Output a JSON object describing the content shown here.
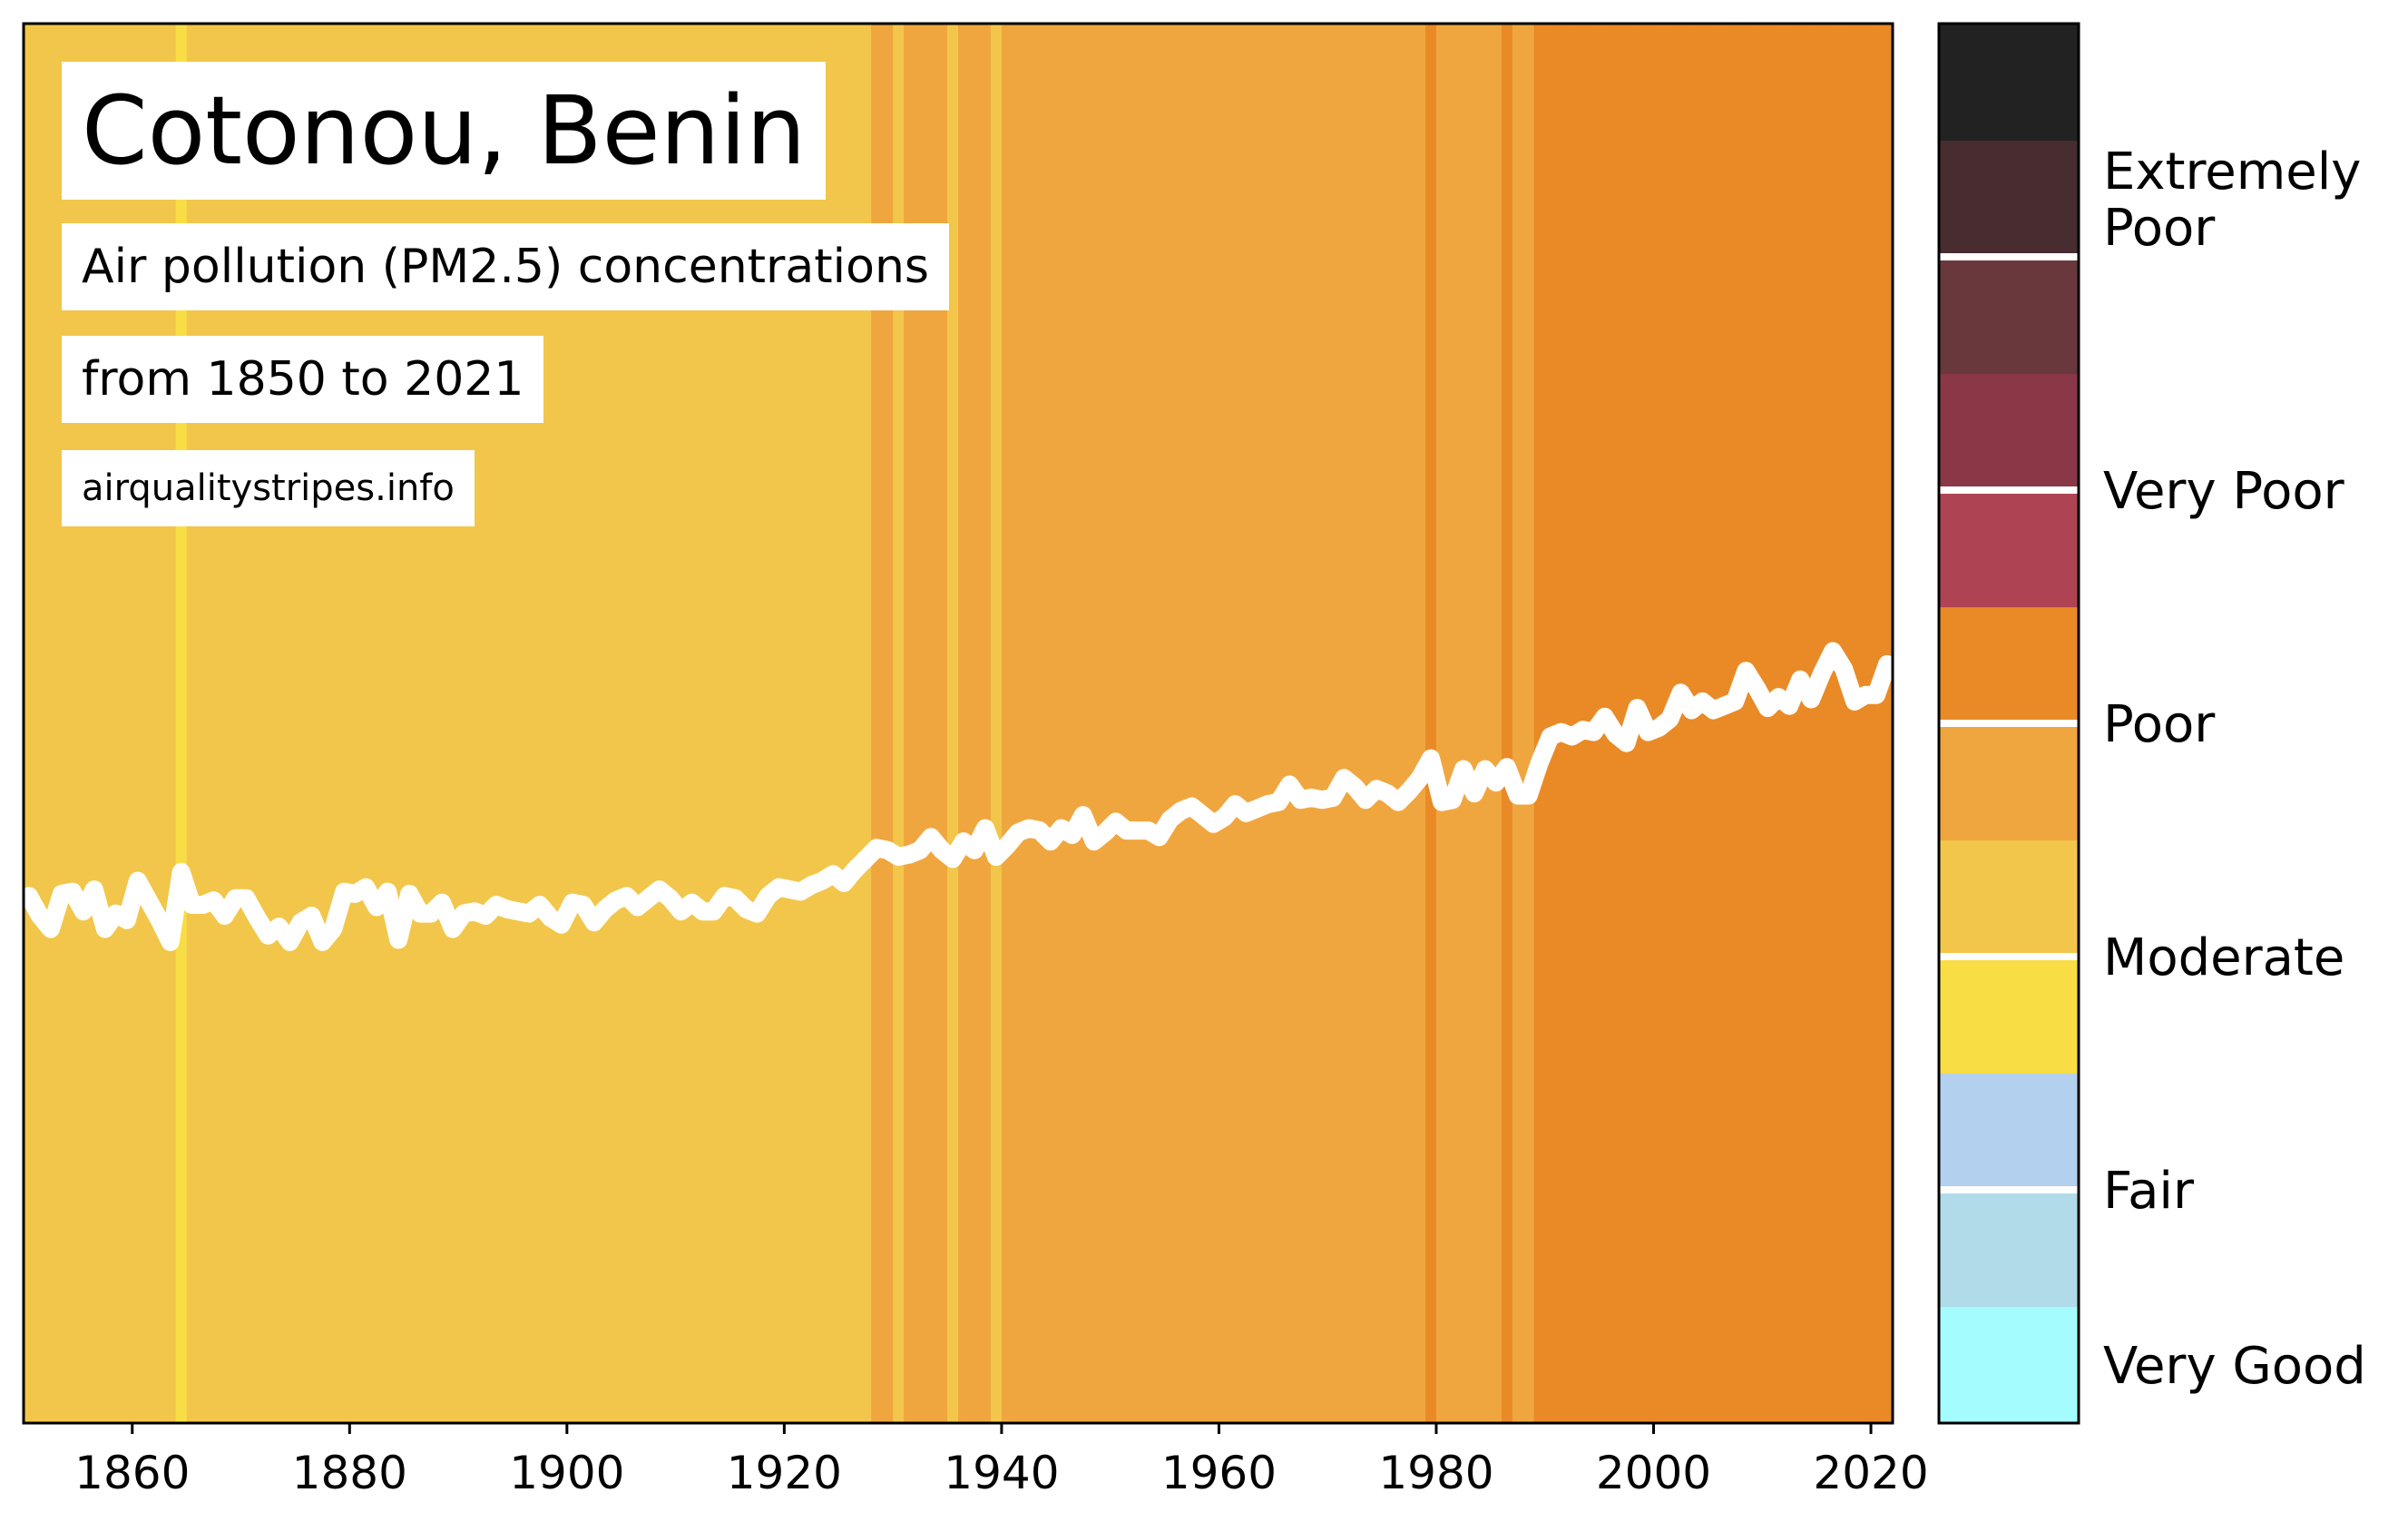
{
  "header": {
    "title": "Cotonou, Benin",
    "subtitle": "Air pollution (PM2.5) concentrations",
    "range": "from 1850 to 2021",
    "source": "airqualitystripes.info"
  },
  "chart_data": {
    "type": "heatmap",
    "description_type": "warming-stripes style yearly stripes with overlaid line",
    "xlim": [
      1850,
      2022
    ],
    "x_ticks": [
      1860,
      1880,
      1900,
      1920,
      1940,
      1960,
      1980,
      2000,
      2020
    ],
    "line_color": "#ffffff",
    "years_start": 1850,
    "values": [
      24.1,
      23.2,
      22.6,
      24.2,
      24.3,
      23.4,
      24.4,
      22.6,
      23.3,
      23.0,
      24.8,
      23.9,
      23.0,
      22.0,
      25.2,
      23.7,
      23.7,
      23.9,
      23.2,
      24.0,
      24.0,
      23.1,
      22.3,
      22.7,
      22.0,
      22.9,
      23.2,
      22.0,
      22.6,
      24.3,
      24.2,
      24.5,
      23.6,
      24.3,
      22.1,
      24.2,
      23.3,
      23.3,
      23.8,
      22.6,
      23.3,
      23.4,
      23.2,
      23.7,
      23.5,
      23.4,
      23.3,
      23.7,
      23.1,
      22.8,
      23.8,
      23.7,
      22.9,
      23.5,
      23.9,
      24.1,
      23.6,
      24.0,
      24.4,
      24.0,
      23.4,
      23.8,
      23.4,
      23.4,
      24.1,
      24.0,
      23.5,
      23.3,
      24.1,
      24.5,
      24.4,
      24.3,
      24.6,
      24.8,
      25.1,
      24.7,
      25.3,
      25.8,
      26.3,
      26.2,
      25.9,
      26.0,
      26.2,
      26.8,
      26.2,
      25.8,
      26.6,
      26.2,
      27.2,
      25.9,
      26.4,
      27.0,
      27.2,
      27.1,
      26.6,
      27.2,
      26.9,
      27.8,
      26.6,
      27.0,
      27.5,
      27.1,
      27.1,
      27.1,
      26.8,
      27.6,
      28.0,
      28.2,
      27.8,
      27.4,
      27.7,
      28.3,
      27.9,
      28.1,
      28.3,
      28.4,
      29.2,
      28.5,
      28.6,
      28.5,
      28.6,
      29.5,
      29.1,
      28.5,
      29.0,
      28.8,
      28.4,
      28.9,
      29.5,
      30.4,
      28.4,
      28.5,
      29.9,
      28.8,
      29.9,
      29.3,
      30.0,
      28.7,
      28.7,
      30.2,
      31.4,
      31.6,
      31.4,
      31.7,
      31.6,
      32.3,
      31.5,
      31.1,
      32.7,
      31.6,
      31.8,
      32.2,
      33.4,
      32.6,
      33.0,
      32.6,
      32.8,
      33.0,
      34.4,
      33.6,
      32.7,
      33.2,
      32.8,
      34.0,
      33.1,
      34.3,
      35.3,
      34.5,
      33.0,
      33.3,
      33.3,
      34.7
    ],
    "stripe_bins": [
      {
        "min": 0,
        "max": 26.0,
        "color": "#f2c64a"
      },
      {
        "min": 26.0,
        "max": 30.0,
        "color": "#f0a63f"
      },
      {
        "min": 30.0,
        "max": 99,
        "color": "#e98a27"
      }
    ],
    "legend": {
      "colors": [
        "#a5fcfe",
        "#b1dbe8",
        "#b3d0ee",
        "#f8de44",
        "#f2c64a",
        "#f0a63f",
        "#e98a27",
        "#ae4453",
        "#8a3847",
        "#69383d",
        "#472d30",
        "#222222"
      ],
      "labels": [
        "Very Good",
        "Fair",
        "Moderate",
        "Poor",
        "Very Poor",
        "Extremely Poor"
      ],
      "label_lines": [
        [
          "Very Good"
        ],
        [
          "Fair"
        ],
        [
          "Moderate"
        ],
        [
          "Poor"
        ],
        [
          "Very Poor"
        ],
        [
          "Extremely",
          "Poor"
        ]
      ]
    }
  }
}
